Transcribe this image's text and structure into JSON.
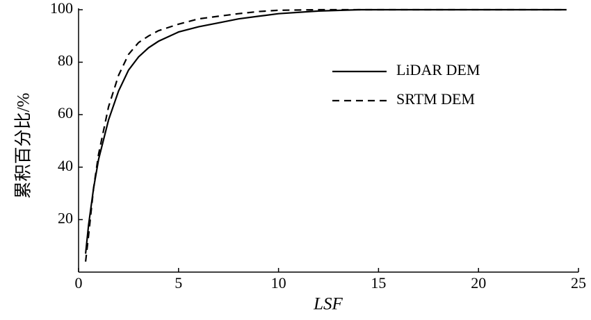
{
  "chart_data": {
    "type": "line",
    "x_label": "LSF",
    "y_label": "累积百分比/%",
    "x": [
      0.35,
      0.5,
      0.75,
      1,
      1.5,
      2,
      2.5,
      3,
      3.5,
      4,
      5,
      6,
      7,
      8,
      9,
      10,
      12,
      14,
      15,
      24.4
    ],
    "series": [
      {
        "name": "LiDAR DEM",
        "color": "#000000",
        "dash": "solid",
        "values": [
          7,
          18,
          32,
          43,
          58,
          69,
          77,
          82,
          85.5,
          88,
          91.5,
          93.5,
          95,
          96.5,
          97.5,
          98.5,
          99.5,
          100,
          100,
          100
        ]
      },
      {
        "name": "SRTM DEM",
        "color": "#000000",
        "dash": "dashed",
        "values": [
          4,
          14,
          32,
          45,
          63,
          75,
          83,
          87.5,
          90,
          92,
          94.5,
          96.5,
          97.5,
          98.5,
          99.3,
          99.8,
          100,
          100,
          100,
          100
        ]
      }
    ],
    "xlim": [
      0,
      25
    ],
    "xticks": [
      0,
      5,
      10,
      15,
      20,
      25
    ],
    "ylim": [
      0,
      100
    ],
    "yticks": [
      20,
      40,
      60,
      80,
      100
    ],
    "grid": false,
    "legend": "upper right"
  }
}
